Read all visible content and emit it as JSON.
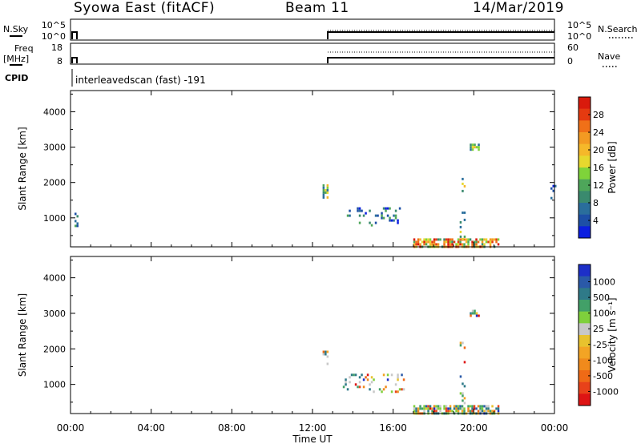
{
  "header": {
    "station": "Syowa East (fitACF)",
    "beam": "Beam 11",
    "date": "14/Mar/2019"
  },
  "param_labels": {
    "nsky": "N.Sky",
    "nsearch": "N.Search",
    "freq_line1": "Freq",
    "freq_line2": "[MHz]",
    "nave": "Nave",
    "cpid": "CPID",
    "cpid_value": "interleavedscan (fast) -191"
  },
  "param_ticks": {
    "noise_left": [
      "10^5",
      "10^0"
    ],
    "noise_right": [
      "10^5",
      "10^0"
    ],
    "freq_left": [
      "18",
      "8"
    ],
    "nave_right": [
      "60",
      "0"
    ]
  },
  "colors": {
    "power": [
      "#0b1ee0",
      "#1d4fa6",
      "#2a6e9c",
      "#3a8a6e",
      "#4ea65a",
      "#7fd33a",
      "#e6d82e",
      "#f5b82a",
      "#f39a22",
      "#f07018",
      "#e53a10",
      "#d91a0c"
    ],
    "velocity": [
      "#1d2fc8",
      "#2a59a8",
      "#2f7a88",
      "#42a068",
      "#7fd03c",
      "#c8c8c8",
      "#e8c22e",
      "#f3a424",
      "#f08a1c",
      "#ef6a16",
      "#e8421a",
      "#de1414"
    ]
  },
  "chart_data": [
    {
      "type": "heatmap",
      "quantity": "Power",
      "title": "",
      "xlabel": "",
      "ylabel": "Slant Range [km]",
      "xlim": [
        0,
        24
      ],
      "ylim": [
        180,
        4600
      ],
      "x_ticks": [
        0,
        4,
        8,
        12,
        16,
        20,
        24
      ],
      "y_ticks": [
        1000,
        2000,
        3000,
        4000
      ],
      "colorbar": {
        "label": "Power [dB]",
        "range": [
          0,
          32
        ],
        "tick_labels": [
          "4",
          "8",
          "12",
          "16",
          "20",
          "24",
          "28"
        ]
      },
      "echo_regions": [
        {
          "t_start": 17.0,
          "t_end": 21.2,
          "range_low": 180,
          "range_high": 420,
          "level": "high"
        },
        {
          "t_start": 19.3,
          "t_end": 19.5,
          "range_low": 400,
          "range_high": 2200,
          "level": "mid"
        },
        {
          "t_start": 19.8,
          "t_end": 20.2,
          "range_low": 2900,
          "range_high": 3100,
          "level": "mid"
        },
        {
          "t_start": 12.5,
          "t_end": 12.7,
          "range_low": 1550,
          "range_high": 1950,
          "level": "mid"
        },
        {
          "t_start": 13.5,
          "t_end": 16.5,
          "range_low": 800,
          "range_high": 1300,
          "level": "low"
        },
        {
          "t_start": 0.1,
          "t_end": 0.3,
          "range_low": 700,
          "range_high": 1350,
          "level": "low"
        },
        {
          "t_start": 23.8,
          "t_end": 24.0,
          "range_low": 1500,
          "range_high": 2000,
          "level": "low"
        }
      ]
    },
    {
      "type": "heatmap",
      "quantity": "Velocity",
      "title": "",
      "xlabel": "Time UT",
      "ylabel": "Slant Range [km]",
      "xlim": [
        0,
        24
      ],
      "ylim": [
        180,
        4600
      ],
      "x_ticks": [
        0,
        4,
        8,
        12,
        16,
        20,
        24
      ],
      "x_tick_labels": [
        "00:00",
        "04:00",
        "08:00",
        "12:00",
        "16:00",
        "20:00",
        "00:00"
      ],
      "y_ticks": [
        1000,
        2000,
        3000,
        4000
      ],
      "colorbar": {
        "label": "Velocity [m s⁻¹]",
        "tick_labels": [
          "1000",
          "500",
          "100",
          "25",
          "-25",
          "-100",
          "-500",
          "-1000"
        ]
      },
      "echo_regions": [
        {
          "t_start": 17.0,
          "t_end": 21.2,
          "range_low": 180,
          "range_high": 420,
          "level": "mixed"
        },
        {
          "t_start": 19.3,
          "t_end": 19.5,
          "range_low": 400,
          "range_high": 2200,
          "level": "mixed"
        },
        {
          "t_start": 19.8,
          "t_end": 20.2,
          "range_low": 2900,
          "range_high": 3100,
          "level": "mixed"
        },
        {
          "t_start": 12.5,
          "t_end": 12.7,
          "range_low": 1550,
          "range_high": 1950,
          "level": "mixed"
        },
        {
          "t_start": 13.5,
          "t_end": 16.5,
          "range_low": 800,
          "range_high": 1300,
          "level": "mixed"
        }
      ]
    }
  ]
}
